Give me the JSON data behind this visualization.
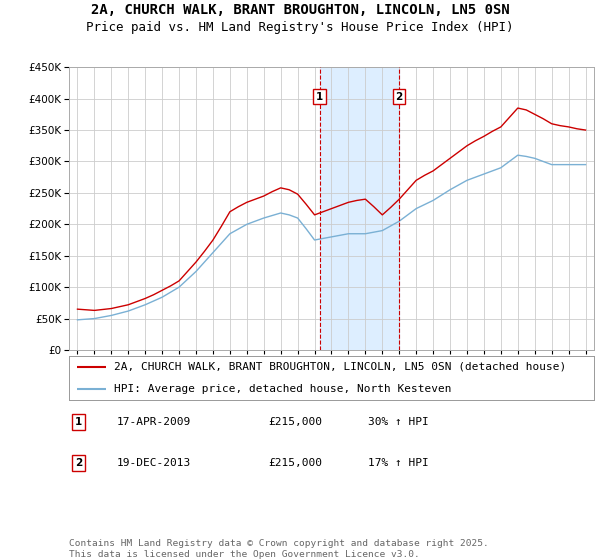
{
  "title": "2A, CHURCH WALK, BRANT BROUGHTON, LINCOLN, LN5 0SN",
  "subtitle": "Price paid vs. HM Land Registry's House Price Index (HPI)",
  "red_label": "2A, CHURCH WALK, BRANT BROUGHTON, LINCOLN, LN5 0SN (detached house)",
  "blue_label": "HPI: Average price, detached house, North Kesteven",
  "footnote": "Contains HM Land Registry data © Crown copyright and database right 2025.\nThis data is licensed under the Open Government Licence v3.0.",
  "purchases": [
    {
      "num": 1,
      "date": "17-APR-2009",
      "price": "£215,000",
      "change": "30% ↑ HPI"
    },
    {
      "num": 2,
      "date": "19-DEC-2013",
      "price": "£215,000",
      "change": "17% ↑ HPI"
    }
  ],
  "purchase_years": [
    2009.3,
    2013.97
  ],
  "ylim": [
    0,
    450000
  ],
  "xlim_start": 1994.5,
  "xlim_end": 2025.5,
  "red_color": "#cc0000",
  "blue_color": "#7ab0d4",
  "shade_color": "#ddeeff",
  "marker_box_color": "#cc0000",
  "grid_color": "#cccccc",
  "title_fontsize": 10,
  "subtitle_fontsize": 9,
  "tick_fontsize": 7.5,
  "legend_fontsize": 8,
  "footnote_fontsize": 6.8,
  "years": [
    1995,
    1995.5,
    1996,
    1996.5,
    1997,
    1997.5,
    1998,
    1998.5,
    1999,
    1999.5,
    2000,
    2000.5,
    2001,
    2001.5,
    2002,
    2002.5,
    2003,
    2003.5,
    2004,
    2004.5,
    2005,
    2005.5,
    2006,
    2006.5,
    2007,
    2007.5,
    2008,
    2008.5,
    2009,
    2009.5,
    2010,
    2010.5,
    2011,
    2011.5,
    2012,
    2012.5,
    2013,
    2013.5,
    2014,
    2014.5,
    2015,
    2015.5,
    2016,
    2016.5,
    2017,
    2017.5,
    2018,
    2018.5,
    2019,
    2019.5,
    2020,
    2020.5,
    2021,
    2021.5,
    2022,
    2022.5,
    2023,
    2023.5,
    2024,
    2024.5,
    2025
  ],
  "red_values": [
    65000,
    64000,
    63000,
    64500,
    66000,
    69000,
    72000,
    77000,
    82000,
    88000,
    95000,
    102000,
    110000,
    125000,
    140000,
    157000,
    175000,
    197000,
    220000,
    228000,
    235000,
    240000,
    245000,
    252000,
    258000,
    255000,
    248000,
    232000,
    215000,
    220000,
    225000,
    230000,
    235000,
    238000,
    240000,
    228000,
    215000,
    227000,
    240000,
    255000,
    270000,
    278000,
    285000,
    295000,
    305000,
    315000,
    325000,
    333000,
    340000,
    348000,
    355000,
    370000,
    385000,
    382000,
    375000,
    368000,
    360000,
    357000,
    355000,
    352000,
    350000
  ],
  "blue_values": [
    48000,
    49000,
    50000,
    52500,
    55000,
    58500,
    62000,
    67000,
    72000,
    78000,
    84000,
    92000,
    100000,
    112500,
    125000,
    140000,
    155000,
    170000,
    185000,
    192500,
    200000,
    205000,
    210000,
    214000,
    218000,
    215000,
    210000,
    193000,
    175000,
    177500,
    180000,
    182500,
    185000,
    185000,
    185000,
    187500,
    190000,
    197500,
    205000,
    215000,
    225000,
    231500,
    238000,
    246500,
    255000,
    262500,
    270000,
    275000,
    280000,
    285000,
    290000,
    300000,
    310000,
    308000,
    305000,
    300000,
    295000,
    295000,
    295000,
    295000,
    295000
  ]
}
